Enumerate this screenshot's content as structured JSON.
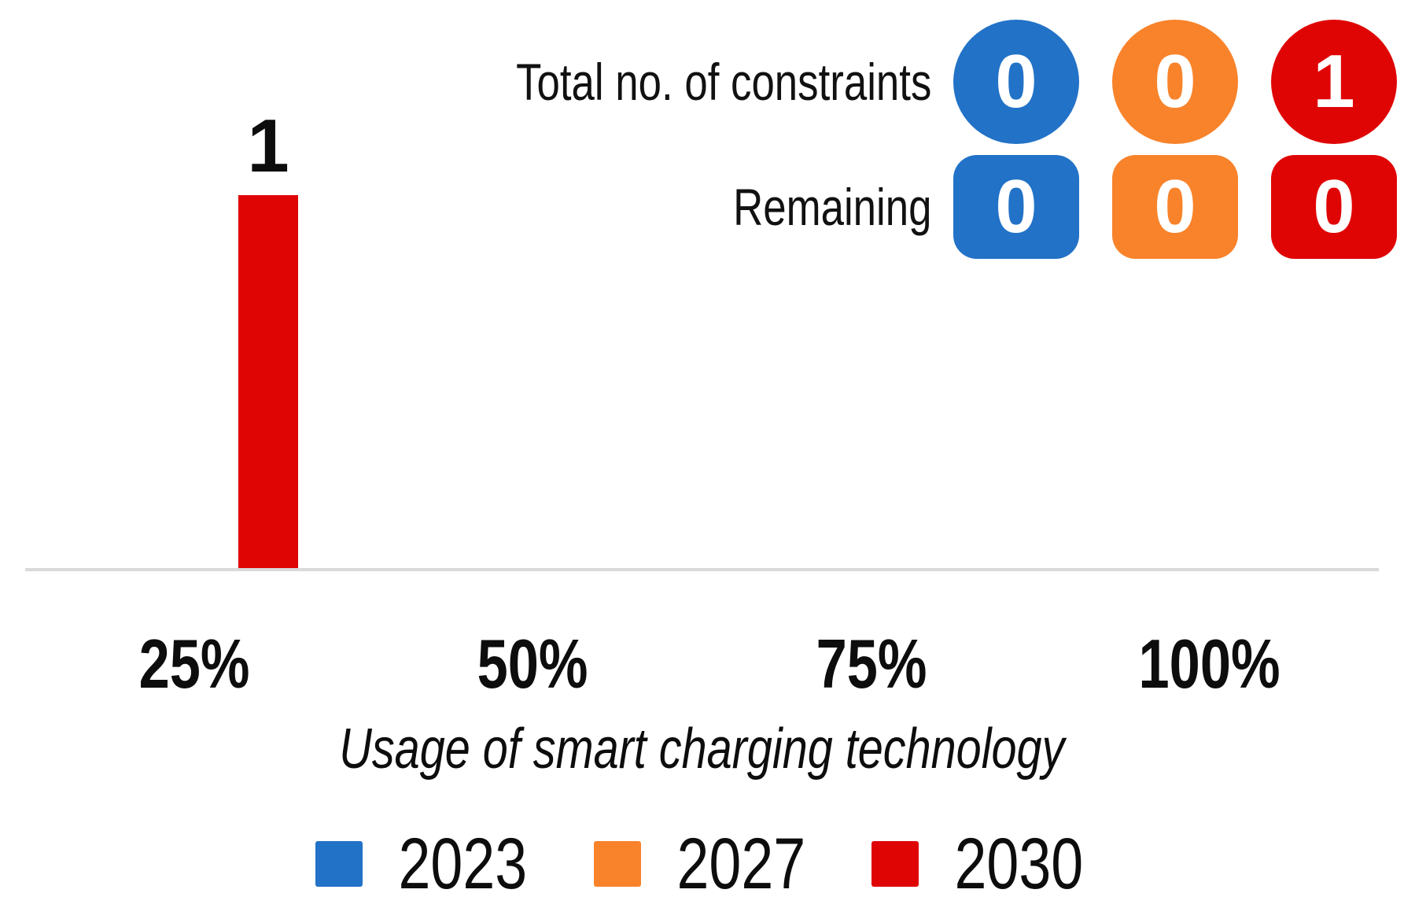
{
  "panel": {
    "rows": [
      {
        "id": "total-constraints",
        "label": "Total no. of constraints",
        "shape": "circle",
        "values": [
          "0",
          "0",
          "1"
        ]
      },
      {
        "id": "remaining",
        "label": "Remaining",
        "shape": "square",
        "values": [
          "0",
          "0",
          "0"
        ]
      }
    ]
  },
  "chart_data": {
    "type": "bar",
    "title": "",
    "categories": [
      "25%",
      "50%",
      "75%",
      "100%"
    ],
    "series": [
      {
        "name": "2023",
        "color": "#2272C7",
        "values": [
          0,
          0,
          0,
          0
        ]
      },
      {
        "name": "2027",
        "color": "#F8832B",
        "values": [
          0,
          0,
          0,
          0
        ]
      },
      {
        "name": "2030",
        "color": "#E00505",
        "values": [
          1,
          0,
          0,
          0
        ]
      }
    ],
    "xlabel": "Usage of smart charging technology",
    "ylabel": "",
    "ylim": [
      0,
      1
    ],
    "grid": false,
    "legend_position": "bottom",
    "value_labels": "shown above non-zero bars",
    "axis_line_color": "#D9D9D9"
  }
}
